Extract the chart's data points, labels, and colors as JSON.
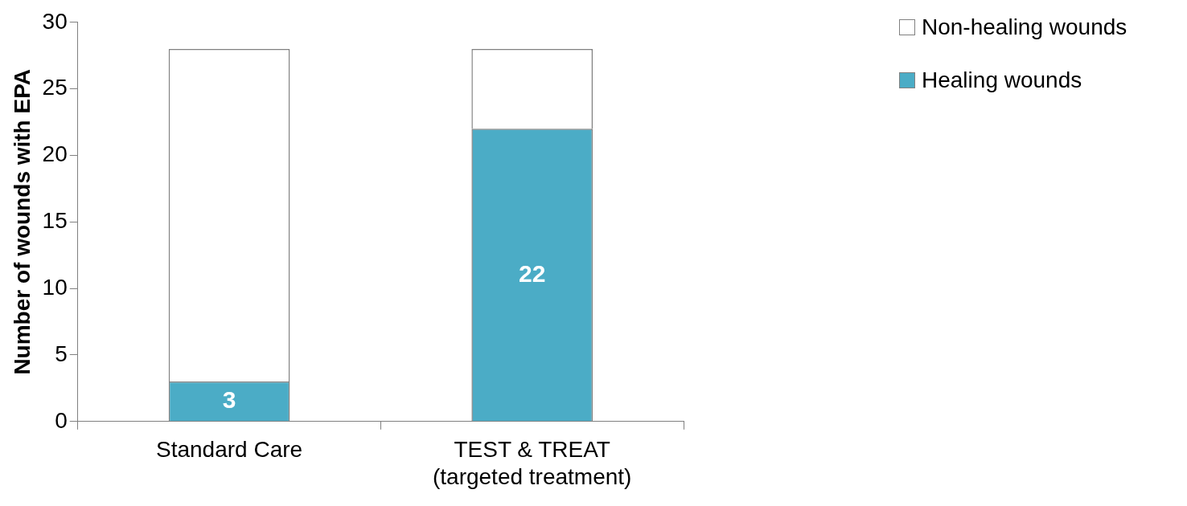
{
  "chart_data": {
    "type": "bar",
    "ylabel": "Number of wounds with EPA",
    "categories": [
      "Standard Care",
      "TEST & TREAT (targeted treatment)"
    ],
    "stacked": true,
    "ylim": [
      0,
      30
    ],
    "yticks": [
      0,
      5,
      10,
      15,
      20,
      25,
      30
    ],
    "grid": false,
    "legend": "top right",
    "series": [
      {
        "name": "Healing wounds",
        "color": "#4bacc6",
        "values": [
          3,
          22
        ],
        "value_labels": [
          "3",
          "22"
        ]
      },
      {
        "name": "Non-healing wounds",
        "color": "#ffffff",
        "values": [
          25,
          6
        ]
      }
    ]
  }
}
